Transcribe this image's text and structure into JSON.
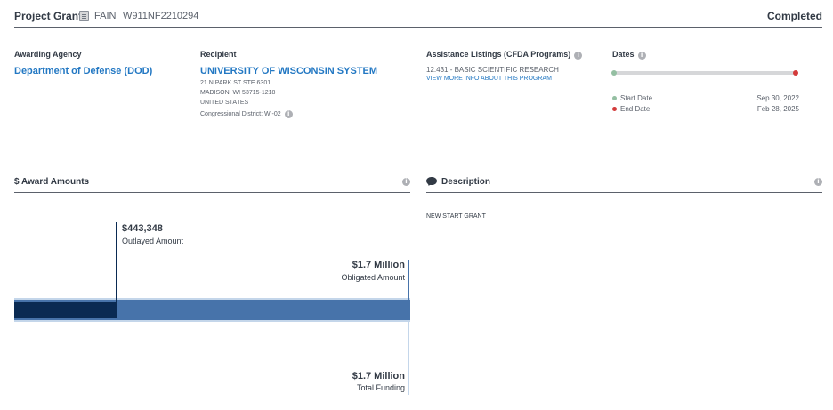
{
  "header": {
    "award_type": "Project Grant",
    "fain_label": "FAIN",
    "fain_value": "W911NF2210294",
    "status": "Completed"
  },
  "awarding_agency": {
    "heading": "Awarding Agency",
    "name": "Department of Defense (DOD)"
  },
  "recipient": {
    "heading": "Recipient",
    "name": "UNIVERSITY OF WISCONSIN SYSTEM",
    "address_line1": "21 N PARK ST STE 6301",
    "address_line2": "MADISON, WI 53715-1218",
    "country": "UNITED STATES",
    "congressional_district": "Congressional District: WI-02"
  },
  "assistance_listings": {
    "heading": "Assistance Listings (CFDA Programs)",
    "program": "12.431 - BASIC SCIENTIFIC RESEARCH",
    "more_link": "VIEW MORE INFO ABOUT THIS PROGRAM"
  },
  "dates": {
    "heading": "Dates",
    "progress_fraction": 1.0,
    "start_label": "Start Date",
    "start_value": "Sep 30, 2022",
    "end_label": "End Date",
    "end_value": "Feb 28, 2025",
    "start_color": "#94bfa2",
    "end_color": "#d33b3b"
  },
  "award_amounts": {
    "heading": "$ Award Amounts",
    "outlayed_amount": "$443,348",
    "outlayed_label": "Outlayed Amount",
    "obligated_amount": "$1.7 Million",
    "obligated_label": "Obligated Amount",
    "total_amount": "$1.7 Million",
    "total_label": "Total Funding",
    "outlayed_value": 443348,
    "obligated_value": 1700000,
    "total_value": 1700000,
    "colors": {
      "outlayed": "#0a2a52",
      "obligated": "#4773aa",
      "total": "#c4d6ea"
    }
  },
  "description": {
    "heading": "Description",
    "text": "NEW START GRANT"
  }
}
